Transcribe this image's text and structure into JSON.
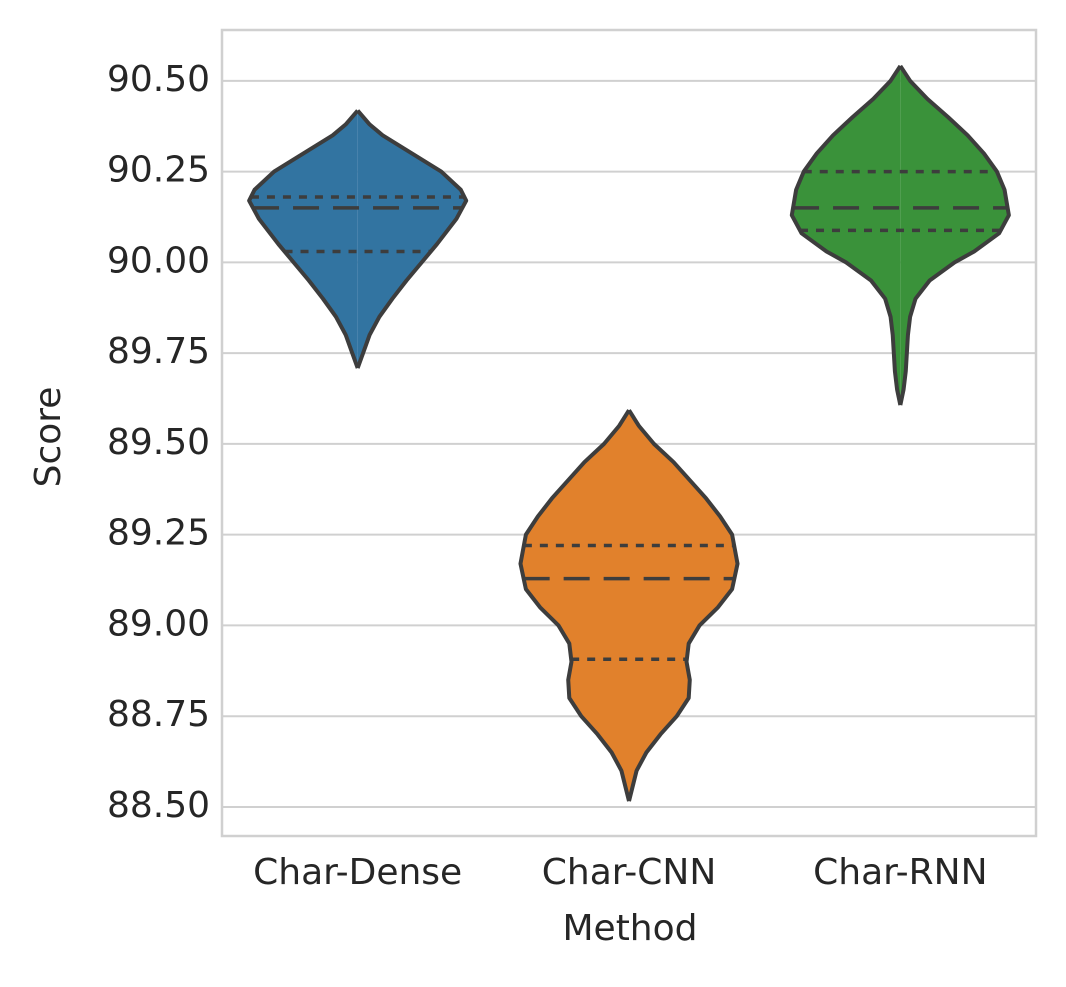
{
  "chart_data": {
    "type": "violin",
    "xlabel": "Method",
    "ylabel": "Score",
    "categories": [
      "Char-Dense",
      "Char-CNN",
      "Char-RNN"
    ],
    "ylim": [
      88.42,
      90.64
    ],
    "yticks": [
      {
        "value": 88.5,
        "label": "88.50"
      },
      {
        "value": 88.75,
        "label": "88.75"
      },
      {
        "value": 89.0,
        "label": "89.00"
      },
      {
        "value": 89.25,
        "label": "89.25"
      },
      {
        "value": 89.5,
        "label": "89.50"
      },
      {
        "value": 89.75,
        "label": "89.75"
      },
      {
        "value": 90.0,
        "label": "90.00"
      },
      {
        "value": 90.25,
        "label": "90.25"
      },
      {
        "value": 90.5,
        "label": "90.50"
      }
    ],
    "grid": true,
    "series": [
      {
        "name": "Char-Dense",
        "color": "#3274a1",
        "q1": 90.03,
        "median": 90.15,
        "q3": 90.18,
        "density": {
          "y": [
            90.418,
            90.38,
            90.35,
            90.3,
            90.25,
            90.2,
            90.17,
            90.12,
            90.05,
            90.0,
            89.95,
            89.9,
            89.85,
            89.8,
            89.75,
            89.709
          ],
          "width": [
            0,
            0.11,
            0.23,
            0.5,
            0.77,
            0.95,
            1,
            0.91,
            0.73,
            0.59,
            0.45,
            0.32,
            0.2,
            0.11,
            0.05,
            0
          ]
        }
      },
      {
        "name": "Char-CNN",
        "color": "#e1812c",
        "q1": 88.907,
        "median": 89.129,
        "q3": 89.22,
        "density": {
          "y": [
            89.593,
            89.55,
            89.5,
            89.45,
            89.4,
            89.35,
            89.3,
            89.25,
            89.17,
            89.1,
            89.05,
            89.0,
            88.95,
            88.9,
            88.85,
            88.8,
            88.75,
            88.7,
            88.65,
            88.6,
            88.516
          ],
          "width": [
            0,
            0.09,
            0.23,
            0.41,
            0.56,
            0.71,
            0.84,
            0.95,
            1,
            0.95,
            0.82,
            0.65,
            0.55,
            0.53,
            0.56,
            0.55,
            0.44,
            0.29,
            0.16,
            0.07,
            0
          ]
        }
      },
      {
        "name": "Char-RNN",
        "color": "#3a923a",
        "q1": 90.088,
        "median": 90.15,
        "q3": 90.25,
        "density": {
          "y": [
            90.541,
            90.5,
            90.45,
            90.4,
            90.35,
            90.3,
            90.25,
            90.2,
            90.13,
            90.08,
            90.03,
            90.0,
            89.95,
            89.9,
            89.85,
            89.8,
            89.75,
            89.7,
            89.65,
            89.607
          ],
          "width": [
            0,
            0.09,
            0.25,
            0.44,
            0.62,
            0.77,
            0.89,
            0.96,
            1,
            0.91,
            0.68,
            0.5,
            0.27,
            0.14,
            0.09,
            0.07,
            0.06,
            0.05,
            0.03,
            0
          ]
        }
      }
    ]
  }
}
